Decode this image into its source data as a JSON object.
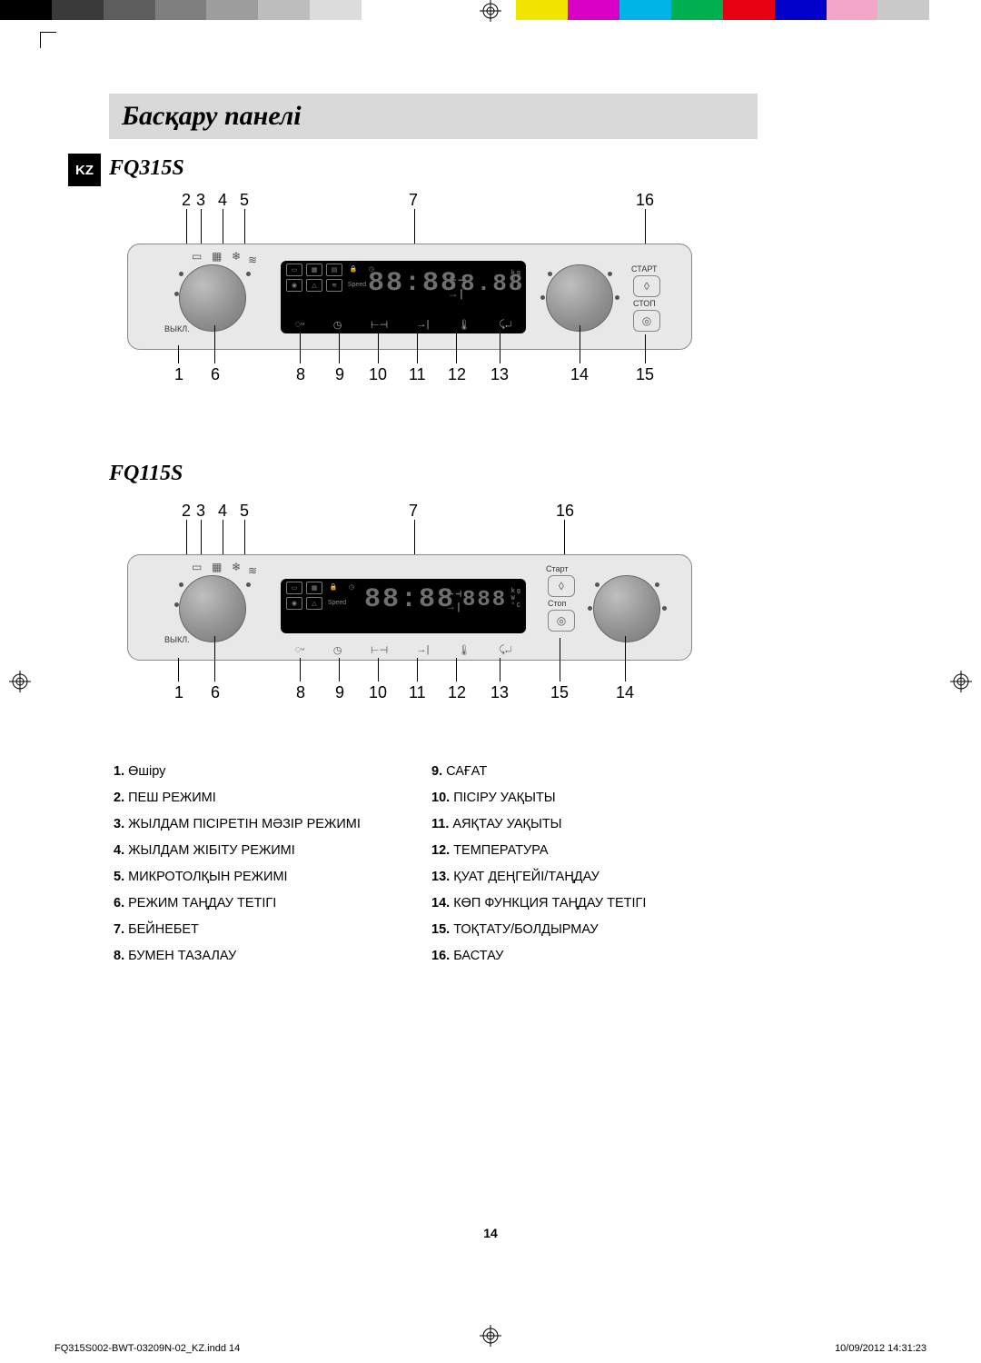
{
  "colorbar": [
    "#000000",
    "#3a3a3a",
    "#5d5d5d",
    "#7e7e7e",
    "#9d9d9d",
    "#bdbdbd",
    "#dcdcdc",
    "#ffffff",
    "#ffffff",
    "#ffffff",
    "#f2e600",
    "#da00c6",
    "#00b4e5",
    "#00b050",
    "#e60012",
    "#0000c8",
    "#f4a6c8",
    "#c9c9c9",
    "#ffffff"
  ],
  "langTab": "KZ",
  "title": "Басқару панелі",
  "models": {
    "a": "FQ315S",
    "b": "FQ115S"
  },
  "panelText": {
    "off": "ВЫКЛ.",
    "start": "СТАРТ",
    "stop": "СТОП",
    "start2": "Старт",
    "stop2": "Стоп",
    "speed": "Speed",
    "digits": "88:88",
    "digits2": "8.88",
    "units": "kg\\nW\\n°C"
  },
  "callouts": {
    "top": [
      "2",
      "3",
      "4",
      "5",
      "7",
      "16"
    ],
    "bottomA": [
      "1",
      "6",
      "8",
      "9",
      "10",
      "11",
      "12",
      "13",
      "14",
      "15"
    ],
    "bottomB": [
      "1",
      "6",
      "8",
      "9",
      "10",
      "11",
      "12",
      "13",
      "15",
      "14"
    ]
  },
  "legend": [
    {
      "n": "1.",
      "t": "Өшіру"
    },
    {
      "n": "2.",
      "t": "ПЕШ РЕЖИМІ"
    },
    {
      "n": "3.",
      "t": "ЖЫЛДАМ ПІСІРЕТІН МӘЗІР РЕЖИМІ"
    },
    {
      "n": "4.",
      "t": "ЖЫЛДАМ ЖІБІТУ РЕЖИМІ"
    },
    {
      "n": "5.",
      "t": "МИКРОТОЛҚЫН РЕЖИМІ"
    },
    {
      "n": "6.",
      "t": "РЕЖИМ ТАҢДАУ ТЕТІГІ"
    },
    {
      "n": "7.",
      "t": "БЕЙНЕБЕТ"
    },
    {
      "n": "8.",
      "t": "БУМЕН ТАЗАЛАУ"
    },
    {
      "n": "9.",
      "t": "САҒАТ"
    },
    {
      "n": "10.",
      "t": "ПІСІРУ УАҚЫТЫ"
    },
    {
      "n": "11.",
      "t": "АЯҚТАУ УАҚЫТЫ"
    },
    {
      "n": "12.",
      "t": "ТЕМПЕРАТУРА"
    },
    {
      "n": "13.",
      "t": "ҚУАТ ДЕҢГЕЙІ/ТАҢДАУ"
    },
    {
      "n": "14.",
      "t": "КӨП ФУНКЦИЯ ТАҢДАУ ТЕТІГІ"
    },
    {
      "n": "15.",
      "t": "ТОҚТАТУ/БОЛДЫРМАУ"
    },
    {
      "n": "16.",
      "t": "БАСТАУ"
    }
  ],
  "pageNumber": "14",
  "footer": {
    "file": "FQ315S002-BWT-03209N-02_KZ.indd   14",
    "stamp": "10/09/2012   14:31:23"
  }
}
